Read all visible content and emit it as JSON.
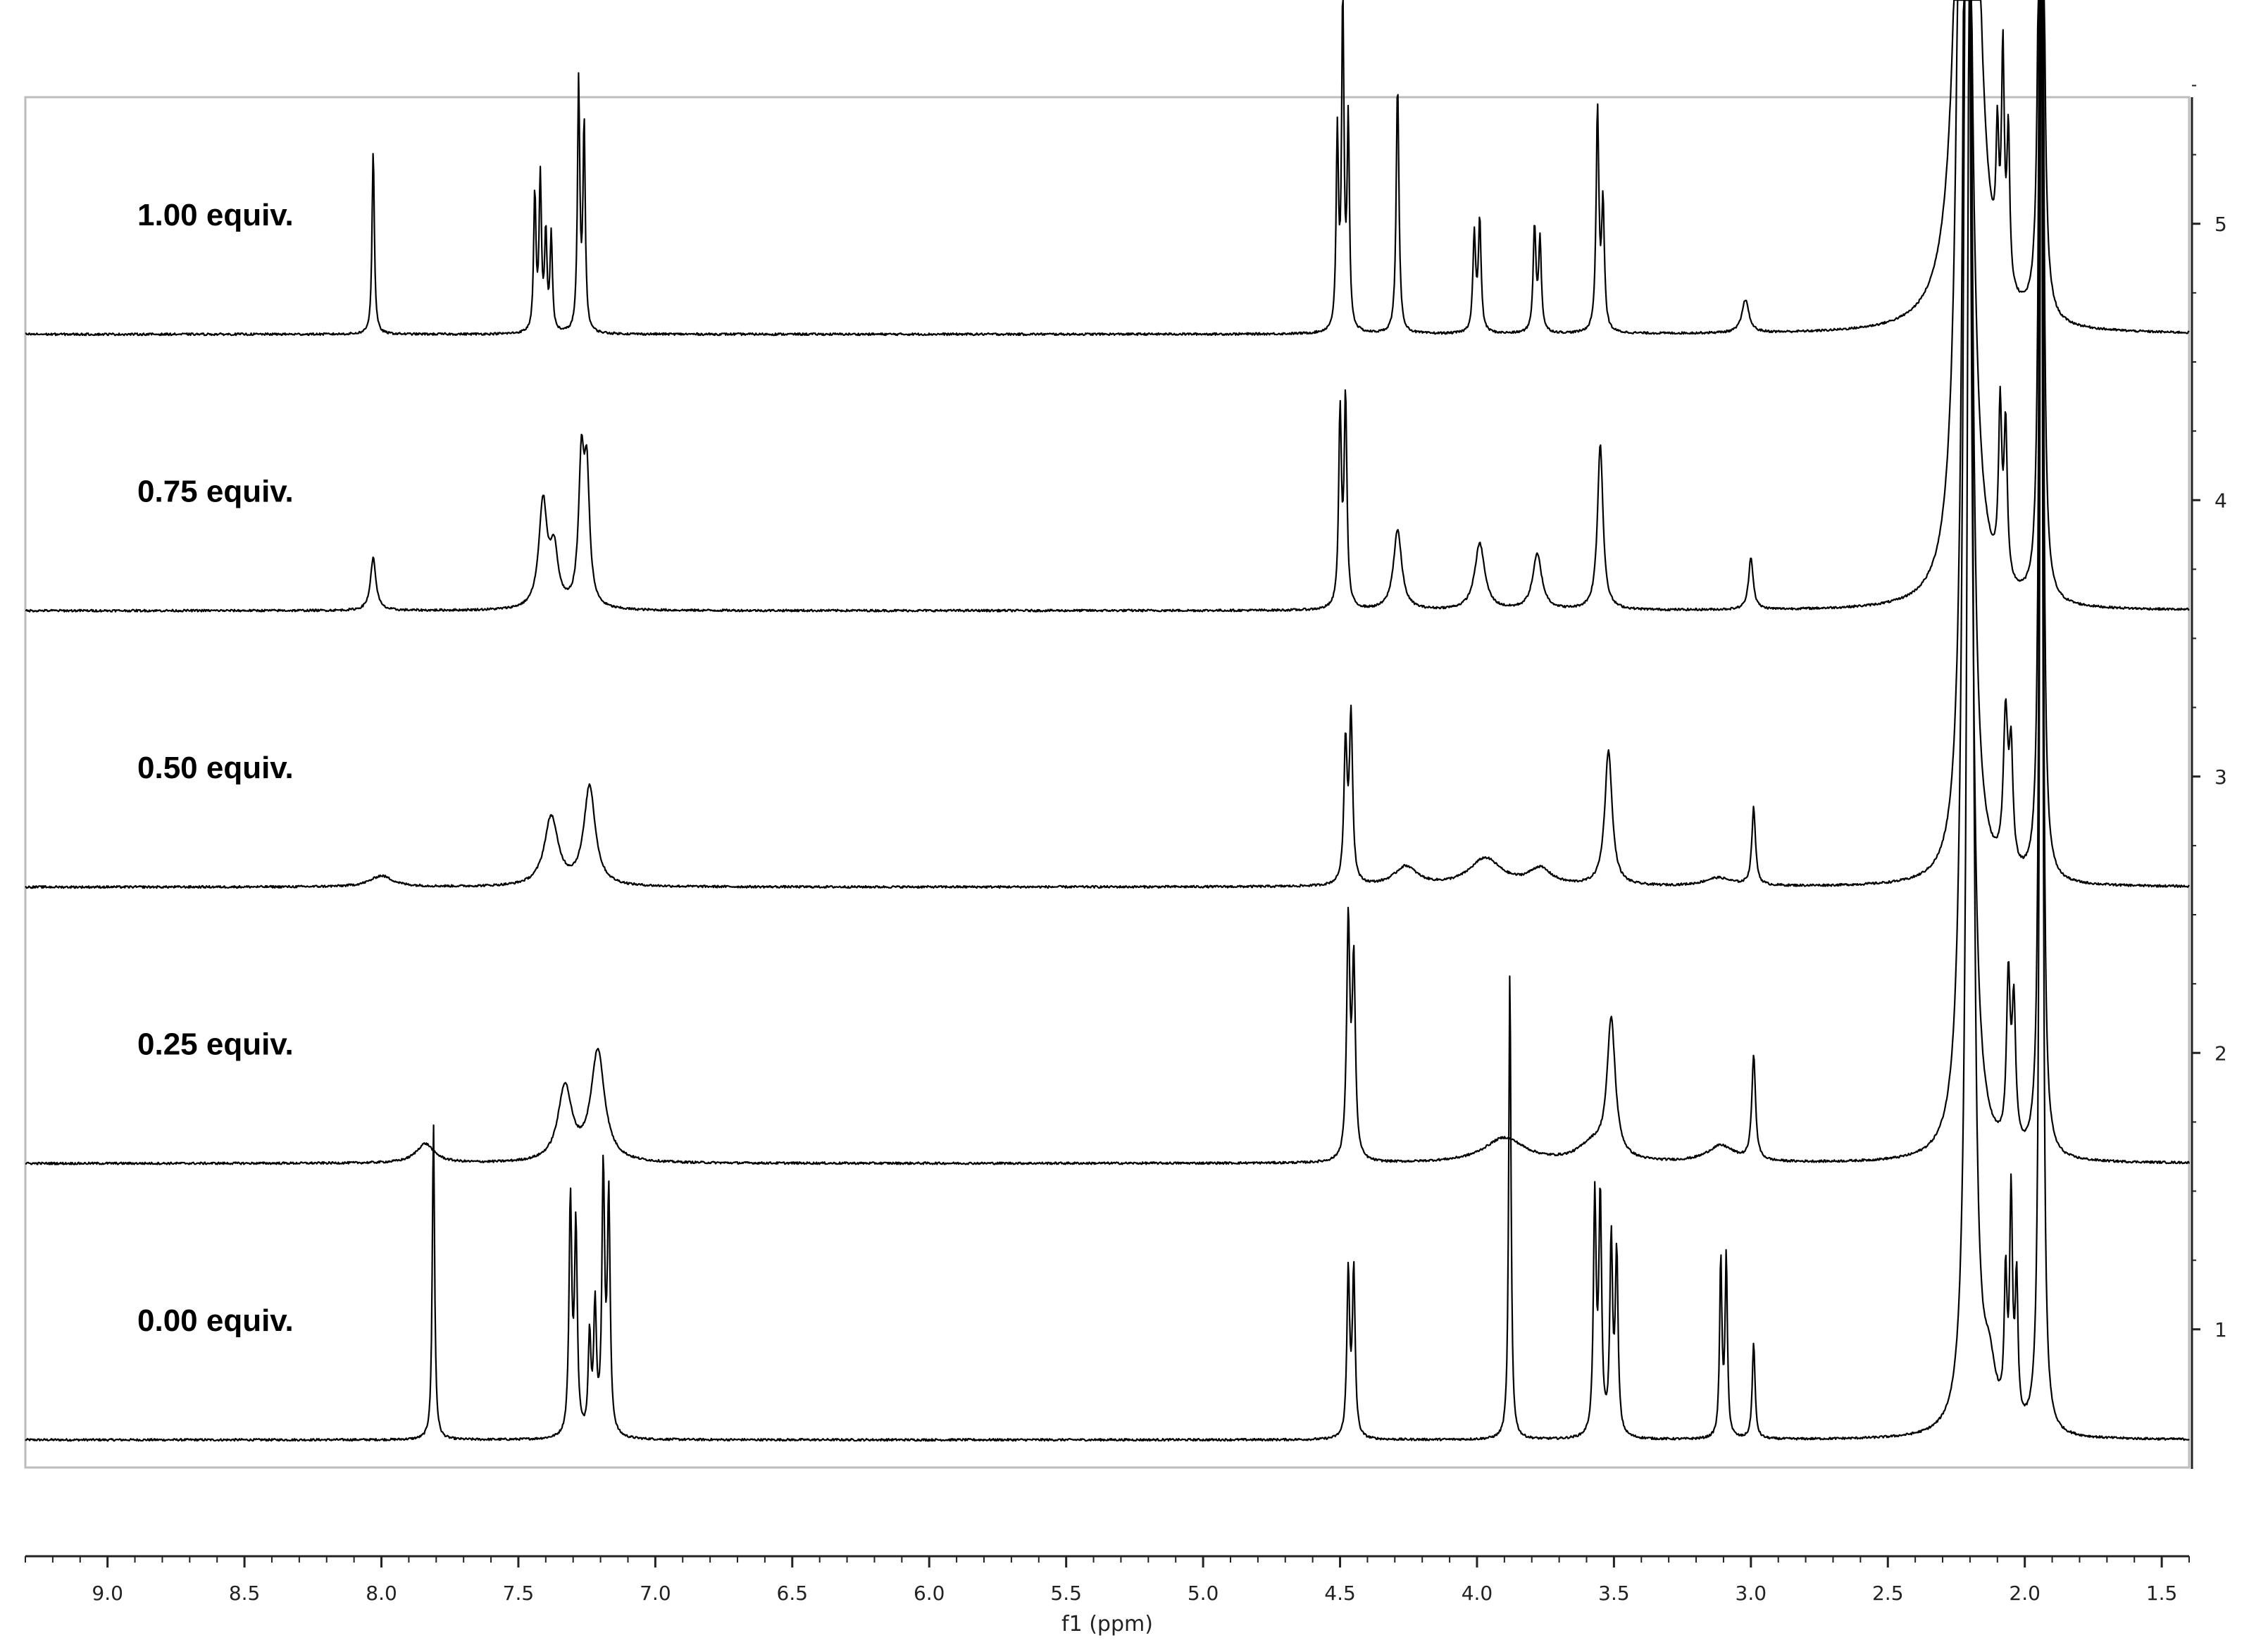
{
  "chart_data": {
    "type": "line",
    "title": "",
    "xlabel": "f1 (ppm)",
    "ylabel": "",
    "x_axis_reversed": true,
    "xlim": [
      9.3,
      1.4
    ],
    "x_ticks": [
      "9.0",
      "8.5",
      "8.0",
      "7.5",
      "7.0",
      "6.5",
      "6.0",
      "5.5",
      "5.0",
      "4.5",
      "4.0",
      "3.5",
      "3.0",
      "2.5",
      "2.0",
      "1.5"
    ],
    "right_axis_ticks": [
      "1",
      "2",
      "3",
      "4",
      "5"
    ],
    "ylim": [
      0.5,
      5.5
    ],
    "grid": false,
    "legend": "none",
    "line_color": "#000000",
    "series": [
      {
        "name": "0.00 equiv.",
        "baseline": 0.6,
        "peaks": [
          {
            "ppm": 7.81,
            "height": 1.15,
            "width": 0.005
          },
          {
            "ppm": 7.31,
            "height": 0.85,
            "width": 0.006
          },
          {
            "ppm": 7.29,
            "height": 0.75,
            "width": 0.006
          },
          {
            "ppm": 7.24,
            "height": 0.35,
            "width": 0.006
          },
          {
            "ppm": 7.22,
            "height": 0.45,
            "width": 0.006
          },
          {
            "ppm": 7.19,
            "height": 0.95,
            "width": 0.006
          },
          {
            "ppm": 7.17,
            "height": 0.85,
            "width": 0.006
          },
          {
            "ppm": 4.47,
            "height": 0.6,
            "width": 0.006
          },
          {
            "ppm": 4.45,
            "height": 0.6,
            "width": 0.006
          },
          {
            "ppm": 3.88,
            "height": 1.7,
            "width": 0.005
          },
          {
            "ppm": 3.57,
            "height": 0.85,
            "width": 0.006
          },
          {
            "ppm": 3.55,
            "height": 0.85,
            "width": 0.006
          },
          {
            "ppm": 3.51,
            "height": 0.7,
            "width": 0.006
          },
          {
            "ppm": 3.49,
            "height": 0.65,
            "width": 0.006
          },
          {
            "ppm": 3.11,
            "height": 0.65,
            "width": 0.005
          },
          {
            "ppm": 3.09,
            "height": 0.65,
            "width": 0.005
          },
          {
            "ppm": 2.99,
            "height": 0.35,
            "width": 0.006
          },
          {
            "ppm": 2.2,
            "height": 6.0,
            "width": 0.012
          },
          {
            "ppm": 2.13,
            "height": 0.2,
            "width": 0.03
          },
          {
            "ppm": 2.07,
            "height": 0.5,
            "width": 0.006
          },
          {
            "ppm": 2.05,
            "height": 0.8,
            "width": 0.006
          },
          {
            "ppm": 2.03,
            "height": 0.5,
            "width": 0.006
          },
          {
            "ppm": 1.94,
            "height": 6.0,
            "width": 0.006
          }
        ]
      },
      {
        "name": "0.25 equiv.",
        "baseline": 1.6,
        "peaks": [
          {
            "ppm": 7.84,
            "height": 0.07,
            "width": 0.04
          },
          {
            "ppm": 7.33,
            "height": 0.27,
            "width": 0.03
          },
          {
            "ppm": 7.21,
            "height": 0.4,
            "width": 0.03
          },
          {
            "ppm": 4.47,
            "height": 0.85,
            "width": 0.007
          },
          {
            "ppm": 4.45,
            "height": 0.7,
            "width": 0.007
          },
          {
            "ppm": 3.9,
            "height": 0.09,
            "width": 0.09
          },
          {
            "ppm": 3.58,
            "height": 0.06,
            "width": 0.06
          },
          {
            "ppm": 3.51,
            "height": 0.5,
            "width": 0.018
          },
          {
            "ppm": 3.11,
            "height": 0.06,
            "width": 0.06
          },
          {
            "ppm": 2.99,
            "height": 0.38,
            "width": 0.008
          },
          {
            "ppm": 2.21,
            "height": 6.0,
            "width": 0.015
          },
          {
            "ppm": 2.06,
            "height": 0.6,
            "width": 0.008
          },
          {
            "ppm": 2.04,
            "height": 0.5,
            "width": 0.008
          },
          {
            "ppm": 1.94,
            "height": 6.0,
            "width": 0.006
          }
        ]
      },
      {
        "name": "0.50 equiv.",
        "baseline": 2.6,
        "peaks": [
          {
            "ppm": 8.0,
            "height": 0.04,
            "width": 0.05
          },
          {
            "ppm": 7.38,
            "height": 0.25,
            "width": 0.03
          },
          {
            "ppm": 7.24,
            "height": 0.36,
            "width": 0.025
          },
          {
            "ppm": 4.48,
            "height": 0.5,
            "width": 0.007
          },
          {
            "ppm": 4.46,
            "height": 0.6,
            "width": 0.007
          },
          {
            "ppm": 4.26,
            "height": 0.07,
            "width": 0.05
          },
          {
            "ppm": 3.97,
            "height": 0.1,
            "width": 0.07
          },
          {
            "ppm": 3.77,
            "height": 0.06,
            "width": 0.05
          },
          {
            "ppm": 3.52,
            "height": 0.49,
            "width": 0.016
          },
          {
            "ppm": 3.12,
            "height": 0.03,
            "width": 0.06
          },
          {
            "ppm": 2.99,
            "height": 0.28,
            "width": 0.008
          },
          {
            "ppm": 2.21,
            "height": 6.0,
            "width": 0.015
          },
          {
            "ppm": 2.07,
            "height": 0.55,
            "width": 0.01
          },
          {
            "ppm": 2.05,
            "height": 0.4,
            "width": 0.008
          },
          {
            "ppm": 1.94,
            "height": 6.0,
            "width": 0.006
          }
        ]
      },
      {
        "name": "0.75 equiv.",
        "baseline": 3.6,
        "peaks": [
          {
            "ppm": 8.03,
            "height": 0.19,
            "width": 0.012
          },
          {
            "ppm": 7.41,
            "height": 0.38,
            "width": 0.018
          },
          {
            "ppm": 7.37,
            "height": 0.2,
            "width": 0.018
          },
          {
            "ppm": 7.27,
            "height": 0.5,
            "width": 0.012
          },
          {
            "ppm": 7.25,
            "height": 0.45,
            "width": 0.012
          },
          {
            "ppm": 4.5,
            "height": 0.7,
            "width": 0.006
          },
          {
            "ppm": 4.48,
            "height": 0.75,
            "width": 0.006
          },
          {
            "ppm": 4.29,
            "height": 0.29,
            "width": 0.018
          },
          {
            "ppm": 3.99,
            "height": 0.24,
            "width": 0.022
          },
          {
            "ppm": 3.78,
            "height": 0.2,
            "width": 0.02
          },
          {
            "ppm": 3.55,
            "height": 0.6,
            "width": 0.012
          },
          {
            "ppm": 3.0,
            "height": 0.19,
            "width": 0.01
          },
          {
            "ppm": 2.22,
            "height": 6.0,
            "width": 0.02
          },
          {
            "ppm": 2.09,
            "height": 0.6,
            "width": 0.007
          },
          {
            "ppm": 2.07,
            "height": 0.55,
            "width": 0.007
          },
          {
            "ppm": 1.94,
            "height": 6.0,
            "width": 0.006
          }
        ]
      },
      {
        "name": "1.00 equiv.",
        "baseline": 4.6,
        "peaks": [
          {
            "ppm": 8.03,
            "height": 0.67,
            "width": 0.005
          },
          {
            "ppm": 7.44,
            "height": 0.5,
            "width": 0.005
          },
          {
            "ppm": 7.42,
            "height": 0.55,
            "width": 0.005
          },
          {
            "ppm": 7.4,
            "height": 0.35,
            "width": 0.005
          },
          {
            "ppm": 7.38,
            "height": 0.35,
            "width": 0.005
          },
          {
            "ppm": 7.28,
            "height": 0.9,
            "width": 0.005
          },
          {
            "ppm": 7.26,
            "height": 0.75,
            "width": 0.005
          },
          {
            "ppm": 4.51,
            "height": 0.7,
            "width": 0.005
          },
          {
            "ppm": 4.49,
            "height": 1.2,
            "width": 0.005
          },
          {
            "ppm": 4.47,
            "height": 0.75,
            "width": 0.005
          },
          {
            "ppm": 4.29,
            "height": 0.9,
            "width": 0.006
          },
          {
            "ppm": 4.01,
            "height": 0.35,
            "width": 0.006
          },
          {
            "ppm": 3.99,
            "height": 0.4,
            "width": 0.006
          },
          {
            "ppm": 3.79,
            "height": 0.38,
            "width": 0.006
          },
          {
            "ppm": 3.77,
            "height": 0.33,
            "width": 0.006
          },
          {
            "ppm": 3.56,
            "height": 0.8,
            "width": 0.006
          },
          {
            "ppm": 3.54,
            "height": 0.45,
            "width": 0.006
          },
          {
            "ppm": 3.02,
            "height": 0.12,
            "width": 0.015
          },
          {
            "ppm": 2.21,
            "height": 6.0,
            "width": 0.025
          },
          {
            "ppm": 2.1,
            "height": 0.45,
            "width": 0.006
          },
          {
            "ppm": 2.08,
            "height": 0.8,
            "width": 0.006
          },
          {
            "ppm": 2.06,
            "height": 0.55,
            "width": 0.006
          },
          {
            "ppm": 1.94,
            "height": 6.0,
            "width": 0.006
          }
        ]
      }
    ]
  }
}
